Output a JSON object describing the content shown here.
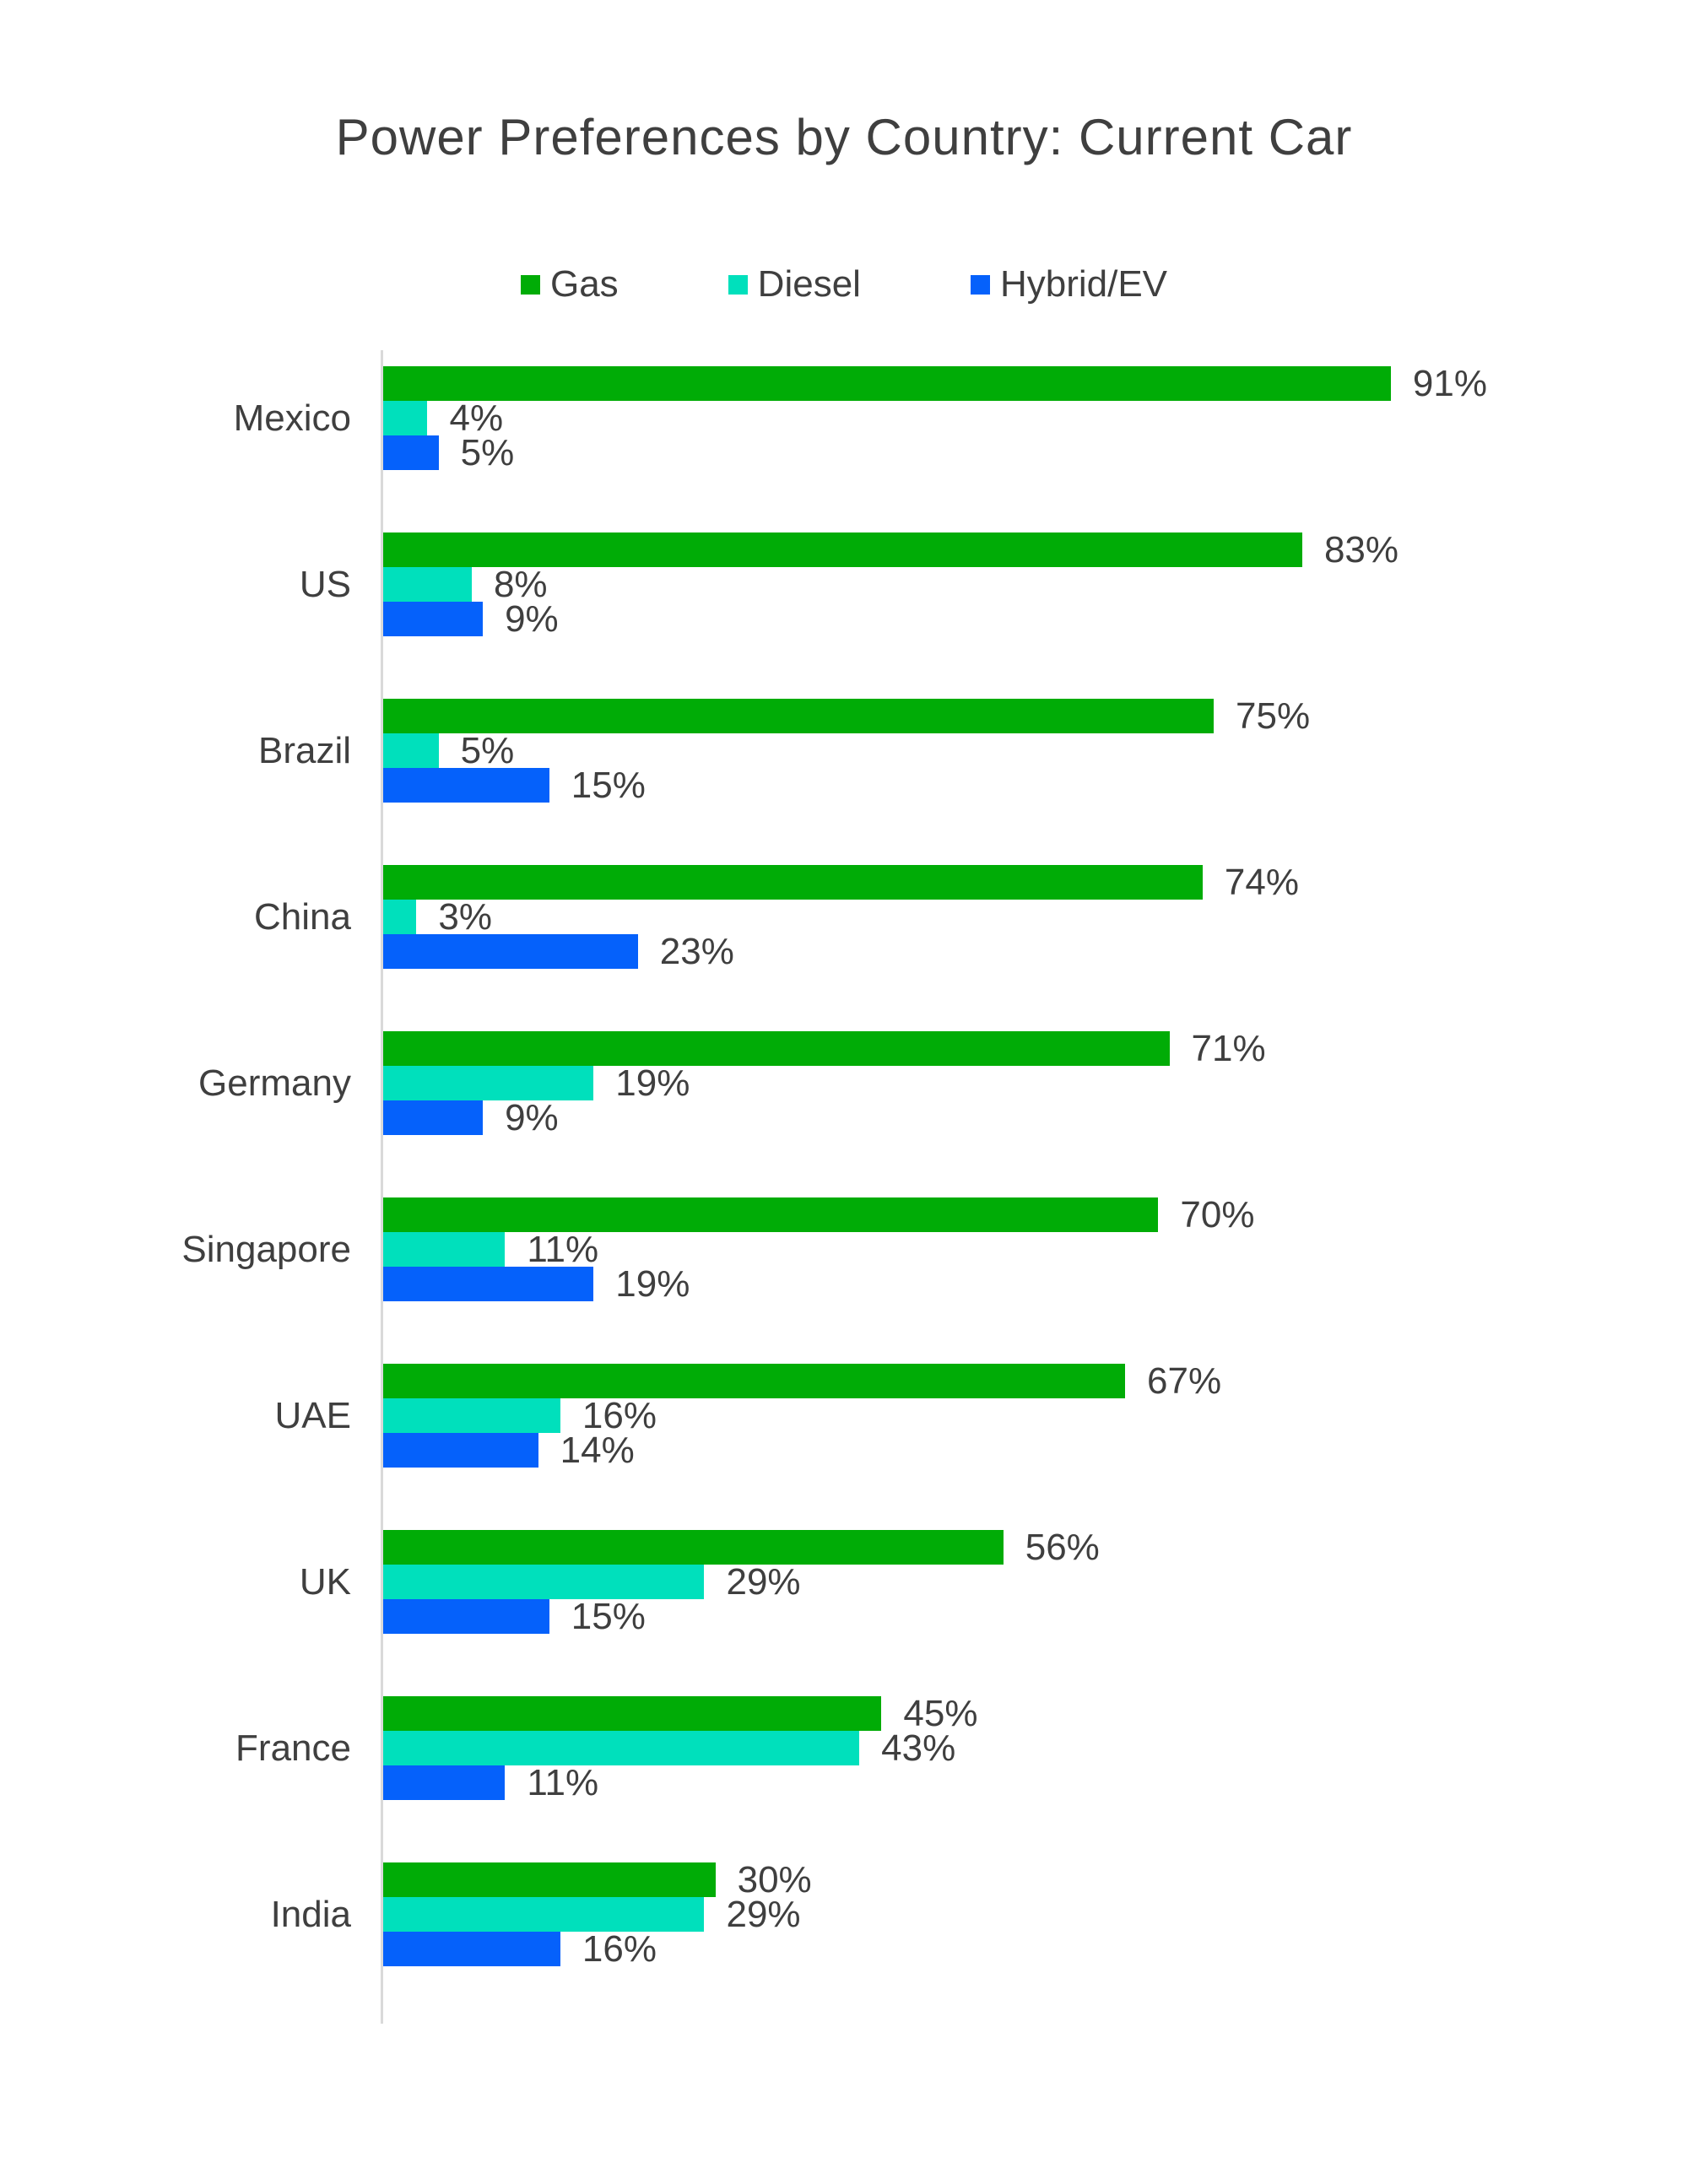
{
  "chart_data": {
    "type": "bar",
    "orientation": "horizontal",
    "title": "Power Preferences by Country: Current Car",
    "categories": [
      "Mexico",
      "US",
      "Brazil",
      "China",
      "Germany",
      "Singapore",
      "UAE",
      "UK",
      "France",
      "India"
    ],
    "series": [
      {
        "name": "Gas",
        "color": "#00ac06",
        "values": [
          91,
          83,
          75,
          74,
          71,
          70,
          67,
          56,
          45,
          30
        ]
      },
      {
        "name": "Diesel",
        "color": "#00e0bc",
        "values": [
          4,
          8,
          5,
          3,
          19,
          11,
          16,
          29,
          43,
          29
        ]
      },
      {
        "name": "Hybrid/EV",
        "color": "#0561fb",
        "values": [
          5,
          9,
          15,
          23,
          9,
          19,
          14,
          15,
          11,
          16
        ]
      }
    ],
    "value_suffix": "%",
    "xlim": [
      0,
      100
    ],
    "grid": false,
    "legend_position": "top",
    "data_labels": true,
    "axis_color": "#d9d9d9",
    "text_color": "#3f3f3f"
  }
}
